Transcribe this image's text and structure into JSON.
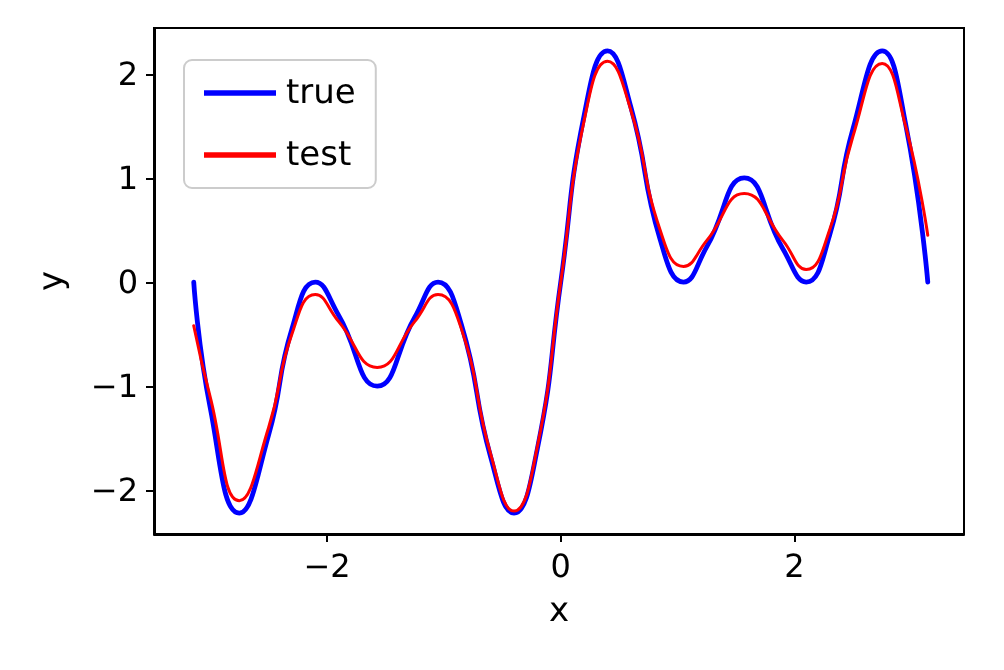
{
  "chart_data": {
    "type": "line",
    "xlabel": "x",
    "ylabel": "y",
    "xlim": [
      -3.48,
      3.45
    ],
    "ylim": [
      -2.42,
      2.44
    ],
    "xticks": [
      -2,
      0,
      2
    ],
    "yticks": [
      -2,
      -1,
      0,
      1,
      2
    ],
    "grid": false,
    "legend": "top left",
    "marker": "none",
    "line_style": "solid",
    "series": [
      {
        "name": "true",
        "color": "#0000ff",
        "x": [
          -3.14,
          -3.0,
          -2.75,
          -2.5,
          -2.3,
          -2.1,
          -1.9,
          -1.57,
          -1.25,
          -1.05,
          -0.85,
          -0.6,
          -0.4,
          -0.2,
          0,
          0.2,
          0.4,
          0.6,
          0.85,
          1.05,
          1.25,
          1.57,
          1.9,
          2.1,
          2.3,
          2.5,
          2.75,
          2.95,
          3.14
        ],
        "values": [
          0.0,
          -1.2,
          -2.22,
          -1.47,
          -0.45,
          0.0,
          -0.32,
          -1.0,
          -0.34,
          0.0,
          -0.41,
          -1.68,
          -2.22,
          -1.6,
          0,
          1.6,
          2.22,
          1.68,
          0.41,
          0,
          0.34,
          1.0,
          0.32,
          0,
          0.45,
          1.47,
          2.22,
          1.52,
          0.0
        ]
      },
      {
        "name": "test",
        "color": "#ff0000",
        "x": [
          -3.14,
          -3.0,
          -2.75,
          -2.5,
          -2.3,
          -2.1,
          -1.9,
          -1.57,
          -1.25,
          -1.05,
          -0.85,
          -0.6,
          -0.4,
          -0.2,
          0,
          0.2,
          0.4,
          0.6,
          0.85,
          1.05,
          1.25,
          1.57,
          1.9,
          2.1,
          2.3,
          2.5,
          2.75,
          2.95,
          3.14
        ],
        "values": [
          -0.42,
          -1.1,
          -2.1,
          -1.4,
          -0.5,
          -0.12,
          -0.38,
          -0.82,
          -0.38,
          -0.12,
          -0.45,
          -1.65,
          -2.2,
          -1.58,
          0,
          1.55,
          2.12,
          1.65,
          0.5,
          0.15,
          0.4,
          0.85,
          0.4,
          0.12,
          0.5,
          1.4,
          2.1,
          1.5,
          0.45
        ]
      }
    ]
  }
}
